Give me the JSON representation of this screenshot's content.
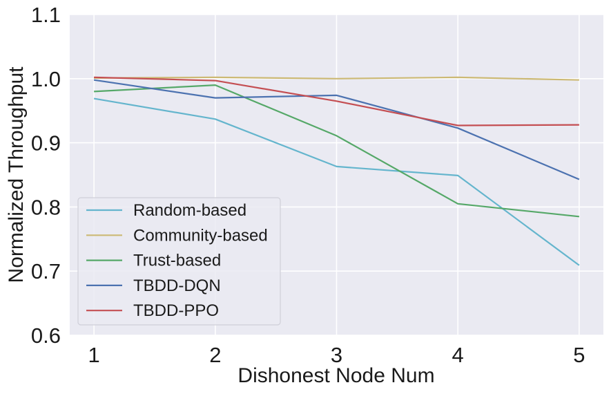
{
  "chart_data": {
    "type": "line",
    "title": "",
    "xlabel": "Dishonest Node Num",
    "ylabel": "Normalized Throughput",
    "x": [
      1,
      2,
      3,
      4,
      5
    ],
    "xticks": [
      "1",
      "2",
      "3",
      "4",
      "5"
    ],
    "yticks": [
      "0.6",
      "0.7",
      "0.8",
      "0.9",
      "1.0",
      "1.1"
    ],
    "xlim": [
      0.8,
      5.2
    ],
    "ylim": [
      0.6,
      1.1
    ],
    "grid": true,
    "legend_position": "lower-left",
    "background_color": "#eaeaf2",
    "series": [
      {
        "name": "Random-based",
        "color": "#64b5cd",
        "values": [
          0.969,
          0.937,
          0.863,
          0.849,
          0.709
        ]
      },
      {
        "name": "Community-based",
        "color": "#ccb974",
        "values": [
          1.001,
          1.002,
          1.0,
          1.002,
          0.998
        ]
      },
      {
        "name": "Trust-based",
        "color": "#55a868",
        "values": [
          0.98,
          0.99,
          0.911,
          0.805,
          0.785
        ]
      },
      {
        "name": "TBDD-DQN",
        "color": "#4c72b0",
        "values": [
          0.998,
          0.97,
          0.974,
          0.923,
          0.843
        ]
      },
      {
        "name": "TBDD-PPO",
        "color": "#c44e52",
        "values": [
          1.002,
          0.997,
          0.965,
          0.927,
          0.928
        ]
      }
    ]
  }
}
